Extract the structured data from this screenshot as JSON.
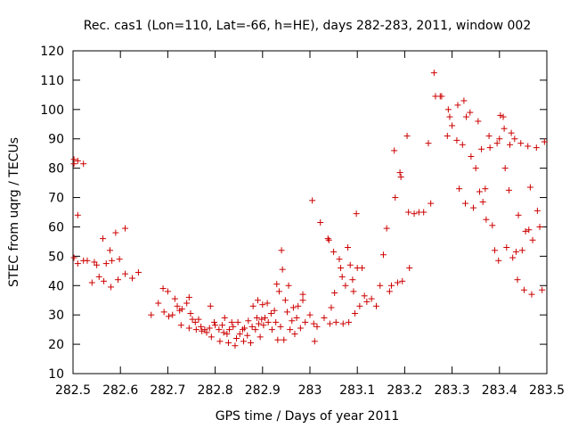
{
  "chart_data": {
    "type": "scatter",
    "title": "Rec. cas1 (Lon=110, Lat=-66, h=HE), days 282-283, 2011, window 002",
    "xlabel": "GPS time / Days of year 2011",
    "ylabel": "STEC from uqrg / TECUs",
    "xlim": [
      282.5,
      283.5
    ],
    "ylim": [
      10,
      120
    ],
    "x_ticks": [
      "282.5",
      "282.6",
      "282.7",
      "282.8",
      "282.9",
      "283",
      "283.1",
      "283.2",
      "283.3",
      "283.4",
      "283.5"
    ],
    "y_ticks": [
      "10",
      "20",
      "30",
      "40",
      "50",
      "60",
      "70",
      "80",
      "90",
      "100",
      "110",
      "120"
    ],
    "grid": false,
    "legend": "none",
    "marker": "+",
    "color": "#cc0000",
    "points": [
      [
        282.502,
        83.0
      ],
      [
        282.502,
        81.5
      ],
      [
        282.502,
        49.5
      ],
      [
        282.51,
        82.5
      ],
      [
        282.51,
        64.0
      ],
      [
        282.51,
        47.5
      ],
      [
        282.522,
        81.5
      ],
      [
        282.522,
        48.5
      ],
      [
        282.53,
        48.5
      ],
      [
        282.54,
        41.0
      ],
      [
        282.545,
        48.0
      ],
      [
        282.55,
        47.0
      ],
      [
        282.555,
        43.0
      ],
      [
        282.563,
        56.0
      ],
      [
        282.565,
        41.5
      ],
      [
        282.57,
        47.5
      ],
      [
        282.578,
        52.0
      ],
      [
        282.58,
        39.5
      ],
      [
        282.582,
        48.5
      ],
      [
        282.59,
        58.0
      ],
      [
        282.595,
        42.0
      ],
      [
        282.598,
        49.0
      ],
      [
        282.61,
        59.5
      ],
      [
        282.61,
        44.0
      ],
      [
        282.625,
        42.5
      ],
      [
        282.638,
        44.5
      ],
      [
        282.665,
        30.0
      ],
      [
        282.68,
        34.0
      ],
      [
        282.69,
        39.0
      ],
      [
        282.692,
        31.0
      ],
      [
        282.7,
        38.0
      ],
      [
        282.702,
        29.5
      ],
      [
        282.71,
        30.0
      ],
      [
        282.715,
        35.5
      ],
      [
        282.72,
        33.0
      ],
      [
        282.725,
        31.5
      ],
      [
        282.728,
        26.5
      ],
      [
        282.73,
        32.0
      ],
      [
        282.74,
        34.0
      ],
      [
        282.745,
        36.0
      ],
      [
        282.745,
        25.5
      ],
      [
        282.748,
        30.5
      ],
      [
        282.752,
        28.5
      ],
      [
        282.758,
        27.5
      ],
      [
        282.76,
        25.0
      ],
      [
        282.765,
        28.5
      ],
      [
        282.77,
        26.0
      ],
      [
        282.772,
        24.5
      ],
      [
        282.778,
        25.0
      ],
      [
        282.782,
        24.0
      ],
      [
        282.788,
        25.5
      ],
      [
        282.79,
        33.0
      ],
      [
        282.792,
        22.5
      ],
      [
        282.798,
        27.5
      ],
      [
        282.8,
        26.5
      ],
      [
        282.808,
        25.0
      ],
      [
        282.81,
        21.0
      ],
      [
        282.815,
        26.5
      ],
      [
        282.818,
        24.0
      ],
      [
        282.82,
        29.0
      ],
      [
        282.825,
        23.5
      ],
      [
        282.828,
        20.5
      ],
      [
        282.83,
        25.0
      ],
      [
        282.835,
        27.5
      ],
      [
        282.838,
        26.0
      ],
      [
        282.842,
        19.5
      ],
      [
        282.845,
        22.0
      ],
      [
        282.848,
        27.5
      ],
      [
        282.852,
        23.5
      ],
      [
        282.858,
        25.0
      ],
      [
        282.86,
        21.0
      ],
      [
        282.862,
        25.5
      ],
      [
        282.868,
        23.0
      ],
      [
        282.87,
        28.0
      ],
      [
        282.875,
        20.5
      ],
      [
        282.878,
        26.0
      ],
      [
        282.88,
        33.0
      ],
      [
        282.885,
        25.0
      ],
      [
        282.888,
        29.0
      ],
      [
        282.89,
        35.0
      ],
      [
        282.892,
        27.0
      ],
      [
        282.895,
        22.5
      ],
      [
        282.898,
        28.5
      ],
      [
        282.9,
        33.5
      ],
      [
        282.902,
        26.5
      ],
      [
        282.905,
        29.0
      ],
      [
        282.91,
        34.0
      ],
      [
        282.912,
        27.5
      ],
      [
        282.918,
        30.5
      ],
      [
        282.92,
        25.0
      ],
      [
        282.925,
        31.5
      ],
      [
        282.928,
        27.5
      ],
      [
        282.93,
        40.5
      ],
      [
        282.932,
        21.5
      ],
      [
        282.935,
        38.0
      ],
      [
        282.938,
        26.0
      ],
      [
        282.94,
        52.0
      ],
      [
        282.942,
        45.5
      ],
      [
        282.945,
        21.5
      ],
      [
        282.948,
        35.0
      ],
      [
        282.952,
        31.0
      ],
      [
        282.955,
        40.0
      ],
      [
        282.958,
        25.0
      ],
      [
        282.962,
        28.0
      ],
      [
        282.965,
        32.5
      ],
      [
        282.968,
        23.5
      ],
      [
        282.972,
        29.0
      ],
      [
        282.975,
        33.0
      ],
      [
        282.98,
        25.5
      ],
      [
        282.985,
        37.0
      ],
      [
        282.985,
        35.0
      ],
      [
        282.99,
        27.5
      ],
      [
        283.0,
        30.0
      ],
      [
        283.005,
        69.0
      ],
      [
        283.008,
        27.0
      ],
      [
        283.01,
        21.0
      ],
      [
        283.015,
        26.0
      ],
      [
        283.022,
        61.5
      ],
      [
        283.03,
        29.0
      ],
      [
        283.038,
        56.0
      ],
      [
        283.04,
        55.5
      ],
      [
        283.042,
        27.0
      ],
      [
        283.045,
        32.5
      ],
      [
        283.05,
        51.5
      ],
      [
        283.052,
        37.5
      ],
      [
        283.055,
        27.5
      ],
      [
        283.062,
        49.0
      ],
      [
        283.065,
        46.0
      ],
      [
        283.068,
        43.0
      ],
      [
        283.07,
        27.0
      ],
      [
        283.075,
        40.0
      ],
      [
        283.08,
        53.0
      ],
      [
        283.082,
        27.5
      ],
      [
        283.085,
        47.0
      ],
      [
        283.09,
        42.0
      ],
      [
        283.092,
        38.0
      ],
      [
        283.095,
        30.5
      ],
      [
        283.098,
        64.5
      ],
      [
        283.1,
        46.0
      ],
      [
        283.105,
        33.0
      ],
      [
        283.11,
        46.0
      ],
      [
        283.115,
        36.5
      ],
      [
        283.12,
        34.5
      ],
      [
        283.13,
        35.5
      ],
      [
        283.14,
        33.0
      ],
      [
        283.148,
        40.0
      ],
      [
        283.155,
        50.5
      ],
      [
        283.162,
        59.5
      ],
      [
        283.168,
        38.0
      ],
      [
        283.172,
        40.0
      ],
      [
        283.178,
        86.0
      ],
      [
        283.18,
        70.0
      ],
      [
        283.185,
        41.0
      ],
      [
        283.19,
        78.5
      ],
      [
        283.192,
        77.0
      ],
      [
        283.195,
        41.5
      ],
      [
        283.205,
        91.0
      ],
      [
        283.208,
        65.0
      ],
      [
        283.21,
        46.0
      ],
      [
        283.22,
        64.5
      ],
      [
        283.23,
        65.0
      ],
      [
        283.24,
        65.0
      ],
      [
        283.25,
        88.5
      ],
      [
        283.255,
        68.0
      ],
      [
        283.262,
        112.5
      ],
      [
        283.265,
        104.5
      ],
      [
        283.275,
        104.5
      ],
      [
        283.278,
        104.5
      ],
      [
        283.29,
        91.0
      ],
      [
        283.292,
        100.0
      ],
      [
        283.295,
        97.5
      ],
      [
        283.3,
        94.5
      ],
      [
        283.31,
        89.5
      ],
      [
        283.312,
        101.5
      ],
      [
        283.315,
        73.0
      ],
      [
        283.322,
        88.0
      ],
      [
        283.325,
        103.0
      ],
      [
        283.328,
        68.0
      ],
      [
        283.33,
        97.5
      ],
      [
        283.338,
        99.0
      ],
      [
        283.34,
        84.0
      ],
      [
        283.345,
        66.5
      ],
      [
        283.35,
        80.0
      ],
      [
        283.355,
        96.0
      ],
      [
        283.358,
        72.0
      ],
      [
        283.362,
        86.5
      ],
      [
        283.365,
        68.5
      ],
      [
        283.37,
        73.0
      ],
      [
        283.372,
        62.5
      ],
      [
        283.378,
        91.0
      ],
      [
        283.38,
        87.0
      ],
      [
        283.385,
        60.5
      ],
      [
        283.39,
        52.0
      ],
      [
        283.395,
        88.5
      ],
      [
        283.398,
        48.5
      ],
      [
        283.4,
        90.0
      ],
      [
        283.402,
        98.0
      ],
      [
        283.408,
        97.5
      ],
      [
        283.41,
        93.5
      ],
      [
        283.412,
        80.0
      ],
      [
        283.415,
        53.0
      ],
      [
        283.42,
        72.5
      ],
      [
        283.422,
        88.0
      ],
      [
        283.425,
        92.0
      ],
      [
        283.428,
        49.5
      ],
      [
        283.432,
        90.0
      ],
      [
        283.435,
        51.5
      ],
      [
        283.438,
        42.0
      ],
      [
        283.44,
        64.0
      ],
      [
        283.445,
        88.5
      ],
      [
        283.448,
        52.0
      ],
      [
        283.452,
        38.5
      ],
      [
        283.455,
        58.5
      ],
      [
        283.46,
        87.5
      ],
      [
        283.462,
        59.0
      ],
      [
        283.465,
        73.5
      ],
      [
        283.468,
        37.0
      ],
      [
        283.47,
        55.5
      ],
      [
        283.478,
        87.0
      ],
      [
        283.48,
        65.5
      ],
      [
        283.485,
        60.0
      ],
      [
        283.49,
        38.5
      ],
      [
        283.495,
        89.0
      ]
    ]
  }
}
